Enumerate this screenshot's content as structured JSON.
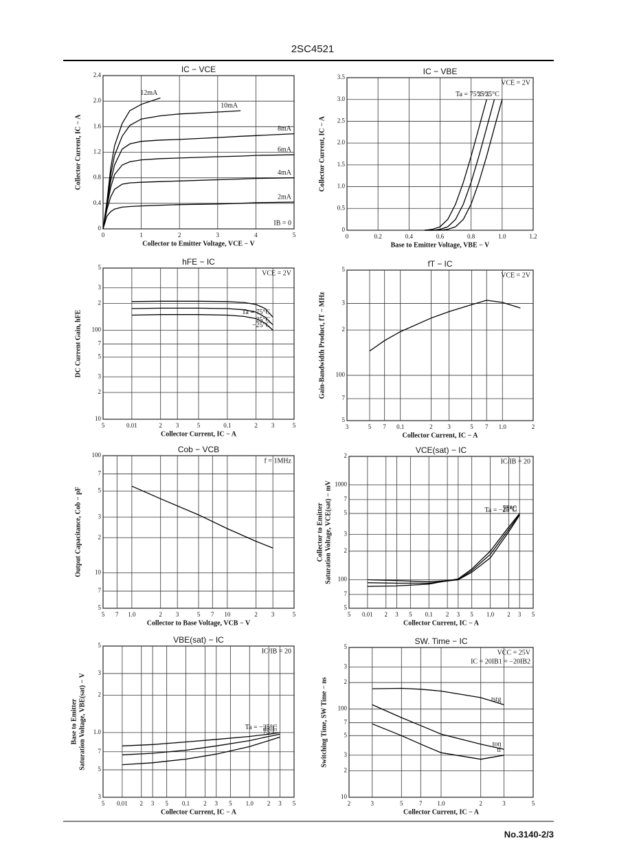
{
  "header": "2SC4521",
  "footer": "No.3140-2/3",
  "chart_data": [
    {
      "type": "line",
      "title": "IC − VCE",
      "xlabel": "Collector to Emitter Voltage, VCE − V",
      "ylabel": [
        "Collector Current, IC − A"
      ],
      "x": [
        0,
        0.1,
        0.2,
        0.3,
        0.5,
        0.7,
        1,
        1.5,
        2,
        3,
        3.6,
        4,
        5
      ],
      "xlim": [
        0,
        5
      ],
      "xticks": [
        0,
        1,
        2,
        3,
        4,
        5
      ],
      "ylim": [
        0,
        2.4
      ],
      "yticks": [
        0,
        0.4,
        0.8,
        1.2,
        1.6,
        {
          "value": 2,
          "label": "2.0"
        },
        2.4
      ],
      "grid": true,
      "annotations": [
        "IB = 0"
      ],
      "series": [
        {
          "name": "2mA",
          "color": "#000",
          "values": [
            0,
            0.2,
            0.27,
            0.31,
            0.34,
            0.35,
            0.36,
            0.37,
            0.38,
            0.39,
            0.4,
            0.41,
            0.42
          ]
        },
        {
          "name": "4mA",
          "color": "#000",
          "values": [
            0,
            0.3,
            0.5,
            0.62,
            0.7,
            0.72,
            0.73,
            0.74,
            0.75,
            0.77,
            0.78,
            0.79,
            0.8
          ]
        },
        {
          "name": "6mA",
          "color": "#000",
          "values": [
            0,
            0.35,
            0.65,
            0.85,
            1.0,
            1.05,
            1.08,
            1.1,
            1.11,
            1.13,
            1.14,
            1.15,
            1.16
          ]
        },
        {
          "name": "8mA",
          "color": "#000",
          "values": [
            0,
            0.38,
            0.75,
            1.0,
            1.25,
            1.33,
            1.37,
            1.39,
            1.4,
            1.43,
            1.45,
            1.46,
            1.49
          ]
        },
        {
          "name": "10mA",
          "color": "#000",
          "values": [
            0,
            0.4,
            0.85,
            1.15,
            1.45,
            1.62,
            1.72,
            1.77,
            1.8,
            1.83,
            1.85,
            null,
            null
          ]
        },
        {
          "name": "12mA",
          "color": "#000",
          "values": [
            0,
            0.42,
            0.95,
            1.3,
            1.65,
            1.85,
            1.95,
            2.05,
            null,
            null,
            null,
            null,
            null
          ]
        }
      ]
    },
    {
      "type": "line",
      "title": "IC − VBE",
      "xlabel": "Base to Emitter Voltage, VBE − V",
      "ylabel": [
        "Collector Current, IC − A"
      ],
      "x": [
        0.5,
        0.55,
        0.6,
        0.65,
        0.7,
        0.75,
        0.8,
        0.85,
        0.9,
        0.95,
        1.0
      ],
      "xlim": [
        0,
        1.2
      ],
      "xticks": [
        0,
        0.2,
        0.4,
        0.6,
        0.8,
        {
          "value": 1,
          "label": "1.0"
        },
        1.2
      ],
      "ylim": [
        0,
        3.5
      ],
      "yticks": [
        0,
        0.5,
        {
          "value": 1,
          "label": "1.0"
        },
        1.5,
        {
          "value": 2,
          "label": "2.0"
        },
        2.5,
        {
          "value": 3,
          "label": "3.0"
        },
        3.5
      ],
      "grid": true,
      "annotations": [
        "VCE = 2V"
      ],
      "series": [
        {
          "name": "Ta = 75°C",
          "color": "#000",
          "values": [
            0,
            0.02,
            0.08,
            0.25,
            0.6,
            1.1,
            1.7,
            2.35,
            3.0,
            null,
            null
          ]
        },
        {
          "name": "25°C",
          "color": "#000",
          "values": [
            0,
            0,
            0.02,
            0.08,
            0.25,
            0.6,
            1.1,
            1.7,
            2.35,
            3.0,
            null
          ]
        },
        {
          "name": "−25°C",
          "color": "#000",
          "values": [
            0,
            0,
            0,
            0.02,
            0.08,
            0.25,
            0.6,
            1.1,
            1.7,
            2.35,
            3.0
          ]
        }
      ]
    },
    {
      "type": "line",
      "title": "hFE − IC",
      "xlabel": "Collector Current, IC − A",
      "ylabel": [
        "DC Current Gain, hFE"
      ],
      "xscale": "log",
      "yscale": "log",
      "x": [
        0.01,
        0.02,
        0.05,
        0.1,
        0.15,
        0.2,
        0.25,
        0.3
      ],
      "xlim": [
        0.005,
        0.5
      ],
      "xticks": [
        {
          "value": 0.005,
          "label": "5"
        },
        0.01,
        {
          "value": 0.02,
          "label": "2"
        },
        {
          "value": 0.03,
          "label": "3"
        },
        {
          "value": 0.05,
          "label": "5"
        },
        0.1,
        {
          "value": 0.2,
          "label": "2"
        },
        {
          "value": 0.3,
          "label": "3"
        },
        {
          "value": 0.5,
          "label": "5"
        }
      ],
      "ylim": [
        10,
        500
      ],
      "yticks": [
        10,
        {
          "value": 20,
          "label": "2"
        },
        {
          "value": 30,
          "label": "3"
        },
        {
          "value": 50,
          "label": "5"
        },
        {
          "value": 70,
          "label": "7"
        },
        100,
        {
          "value": 200,
          "label": "2"
        },
        {
          "value": 300,
          "label": "3"
        },
        {
          "value": 500,
          "label": "5"
        }
      ],
      "grid": true,
      "annotations": [
        "VCE = 2V"
      ],
      "series": [
        {
          "name": "Ta = 75°C",
          "color": "#000",
          "values": [
            210,
            212,
            212,
            210,
            205,
            195,
            175,
            140
          ]
        },
        {
          "name": "25°C",
          "color": "#000",
          "values": [
            175,
            177,
            177,
            175,
            170,
            160,
            140,
            115
          ]
        },
        {
          "name": "−25°C",
          "color": "#000",
          "values": [
            148,
            150,
            150,
            148,
            143,
            135,
            120,
            100
          ]
        }
      ]
    },
    {
      "type": "line",
      "title": "fT − IC",
      "xlabel": "Collector Current, IC − A",
      "ylabel": [
        "Gain-Bandwidth Product, fT − MHz"
      ],
      "xscale": "log",
      "yscale": "log",
      "x": [
        0.05,
        0.07,
        0.1,
        0.2,
        0.3,
        0.5,
        0.7,
        1,
        1.5
      ],
      "xlim": [
        0.03,
        2
      ],
      "xticks": [
        {
          "value": 0.03,
          "label": "3"
        },
        {
          "value": 0.05,
          "label": "5"
        },
        {
          "value": 0.07,
          "label": "7"
        },
        0.1,
        {
          "value": 0.2,
          "label": "2"
        },
        {
          "value": 0.3,
          "label": "3"
        },
        {
          "value": 0.5,
          "label": "5"
        },
        {
          "value": 0.7,
          "label": "7"
        },
        {
          "value": 1,
          "label": "1.0"
        },
        2
      ],
      "ylim": [
        50,
        500
      ],
      "yticks": [
        {
          "value": 50,
          "label": "5"
        },
        {
          "value": 70,
          "label": "7"
        },
        100,
        {
          "value": 200,
          "label": "2"
        },
        {
          "value": 300,
          "label": "3"
        },
        {
          "value": 500,
          "label": "5"
        }
      ],
      "grid": true,
      "annotations": [
        "VCE = 2V"
      ],
      "series": [
        {
          "name": null,
          "color": "#000",
          "values": [
            145,
            170,
            195,
            240,
            265,
            295,
            315,
            305,
            280
          ]
        }
      ]
    },
    {
      "type": "line",
      "title": "Cob − VCB",
      "xlabel": "Collector to Base Voltage, VCB − V",
      "ylabel": [
        "Output Capacitance, Cob − pF"
      ],
      "xscale": "log",
      "yscale": "log",
      "x": [
        1,
        2,
        5,
        10,
        20,
        30
      ],
      "xlim": [
        0.5,
        50
      ],
      "xticks": [
        {
          "value": 0.5,
          "label": "5"
        },
        {
          "value": 0.7,
          "label": "7"
        },
        {
          "value": 1,
          "label": "1.0"
        },
        {
          "value": 2,
          "label": "2"
        },
        {
          "value": 3,
          "label": "3"
        },
        {
          "value": 5,
          "label": "5"
        },
        {
          "value": 7,
          "label": "7"
        },
        10,
        {
          "value": 20,
          "label": "2"
        },
        {
          "value": 30,
          "label": "3"
        },
        {
          "value": 50,
          "label": "5"
        }
      ],
      "ylim": [
        5,
        100
      ],
      "yticks": [
        5,
        7,
        10,
        {
          "value": 20,
          "label": "2"
        },
        {
          "value": 30,
          "label": "3"
        },
        {
          "value": 50,
          "label": "5"
        },
        {
          "value": 70,
          "label": "7"
        },
        100
      ],
      "grid": true,
      "annotations": [
        "f = 1MHz"
      ],
      "series": [
        {
          "name": null,
          "color": "#000",
          "values": [
            55,
            42.9,
            31.3,
            23.9,
            18.6,
            16.3
          ]
        }
      ]
    },
    {
      "type": "line",
      "title": "VCE(sat) − IC",
      "xlabel": "Collector Current, IC − A",
      "ylabel": [
        "Collector to Emitter",
        "Saturation Voltage, VCE(sat) − mV"
      ],
      "xscale": "log",
      "yscale": "log",
      "x": [
        0.01,
        0.03,
        0.1,
        0.3,
        0.5,
        1,
        2,
        3
      ],
      "xlim": [
        0.005,
        5
      ],
      "xticks": [
        {
          "value": 0.005,
          "label": "5"
        },
        0.01,
        {
          "value": 0.02,
          "label": "2"
        },
        {
          "value": 0.03,
          "label": "3"
        },
        {
          "value": 0.05,
          "label": "5"
        },
        0.1,
        {
          "value": 0.2,
          "label": "2"
        },
        {
          "value": 0.3,
          "label": "3"
        },
        {
          "value": 0.5,
          "label": "5"
        },
        {
          "value": 1,
          "label": "1.0"
        },
        2,
        3,
        5
      ],
      "ylim": [
        50,
        2000
      ],
      "yticks": [
        {
          "value": 50,
          "label": "5"
        },
        {
          "value": 70,
          "label": "7"
        },
        100,
        {
          "value": 200,
          "label": "2"
        },
        {
          "value": 300,
          "label": "3"
        },
        {
          "value": 500,
          "label": "5"
        },
        {
          "value": 700,
          "label": "7"
        },
        1000,
        {
          "value": 2000,
          "label": "2"
        }
      ],
      "grid": true,
      "annotations": [
        "IC/IB = 20"
      ],
      "series": [
        {
          "name": "Ta = −25°C",
          "color": "#000",
          "values": [
            100,
            98,
            95,
            100,
            120,
            170,
            320,
            480
          ]
        },
        {
          "name": "25°C",
          "color": "#000",
          "values": [
            93,
            92,
            92,
            100,
            125,
            185,
            340,
            490
          ]
        },
        {
          "name": "75°C",
          "color": "#000",
          "values": [
            85,
            86,
            90,
            102,
            130,
            200,
            360,
            500
          ]
        }
      ]
    },
    {
      "type": "line",
      "title": "VBE(sat) − IC",
      "xlabel": "Collector Current, IC − A",
      "ylabel": [
        "Base to Emitter",
        "Saturation Voltage, VBE(sat) − V"
      ],
      "xscale": "log",
      "yscale": "log",
      "x": [
        0.01,
        0.03,
        0.1,
        0.3,
        1,
        2,
        3
      ],
      "xlim": [
        0.005,
        5
      ],
      "xticks": [
        {
          "value": 0.005,
          "label": "5"
        },
        0.01,
        {
          "value": 0.02,
          "label": "2"
        },
        {
          "value": 0.03,
          "label": "3"
        },
        {
          "value": 0.05,
          "label": "5"
        },
        0.1,
        {
          "value": 0.2,
          "label": "2"
        },
        {
          "value": 0.3,
          "label": "3"
        },
        {
          "value": 0.5,
          "label": "5"
        },
        {
          "value": 1,
          "label": "1.0"
        },
        2,
        3,
        5
      ],
      "ylim": [
        0.3,
        5
      ],
      "yticks": [
        {
          "value": 0.3,
          "label": "3"
        },
        {
          "value": 0.5,
          "label": "5"
        },
        {
          "value": 0.7,
          "label": "7"
        },
        {
          "value": 1,
          "label": "1.0"
        },
        2,
        3,
        5
      ],
      "grid": true,
      "annotations": [
        "IC/IB = 20"
      ],
      "series": [
        {
          "name": "Ta = −25°C",
          "color": "#000",
          "values": [
            0.78,
            0.8,
            0.84,
            0.88,
            0.93,
            0.97,
            1.0
          ]
        },
        {
          "name": "25°C",
          "color": "#000",
          "values": [
            0.66,
            0.68,
            0.72,
            0.78,
            0.86,
            0.93,
            0.97
          ]
        },
        {
          "name": "75°C",
          "color": "#000",
          "values": [
            0.55,
            0.57,
            0.61,
            0.67,
            0.77,
            0.86,
            0.92
          ]
        }
      ]
    },
    {
      "type": "line",
      "title": "SW. Time − IC",
      "xlabel": "Collector Current, IC − A",
      "ylabel": [
        "Switching Time, SW Time − ns"
      ],
      "xscale": "log",
      "yscale": "log",
      "x": [
        0.3,
        0.5,
        0.7,
        1,
        2,
        3
      ],
      "xlim": [
        0.2,
        5
      ],
      "xticks": [
        {
          "value": 0.2,
          "label": "2"
        },
        {
          "value": 0.3,
          "label": "3"
        },
        {
          "value": 0.5,
          "label": "5"
        },
        {
          "value": 0.7,
          "label": "7"
        },
        {
          "value": 1,
          "label": "1.0"
        },
        2,
        3,
        5
      ],
      "ylim": [
        10,
        500
      ],
      "yticks": [
        10,
        {
          "value": 20,
          "label": "2"
        },
        {
          "value": 30,
          "label": "3"
        },
        {
          "value": 50,
          "label": "5"
        },
        {
          "value": 70,
          "label": "7"
        },
        100,
        {
          "value": 200,
          "label": "2"
        },
        {
          "value": 300,
          "label": "3"
        },
        {
          "value": 500,
          "label": "5"
        }
      ],
      "grid": true,
      "annotations": [
        "VCC = 25V",
        "IC = 20IB1 = −20IB2"
      ],
      "series": [
        {
          "name": "tstg",
          "color": "#000",
          "values": [
            170,
            172,
            168,
            160,
            135,
            112
          ]
        },
        {
          "name": "ton",
          "color": "#000",
          "values": [
            112,
            80,
            65,
            52,
            40,
            35
          ]
        },
        {
          "name": "tf",
          "color": "#000",
          "values": [
            68,
            50,
            40,
            32,
            27,
            30
          ]
        }
      ]
    }
  ]
}
